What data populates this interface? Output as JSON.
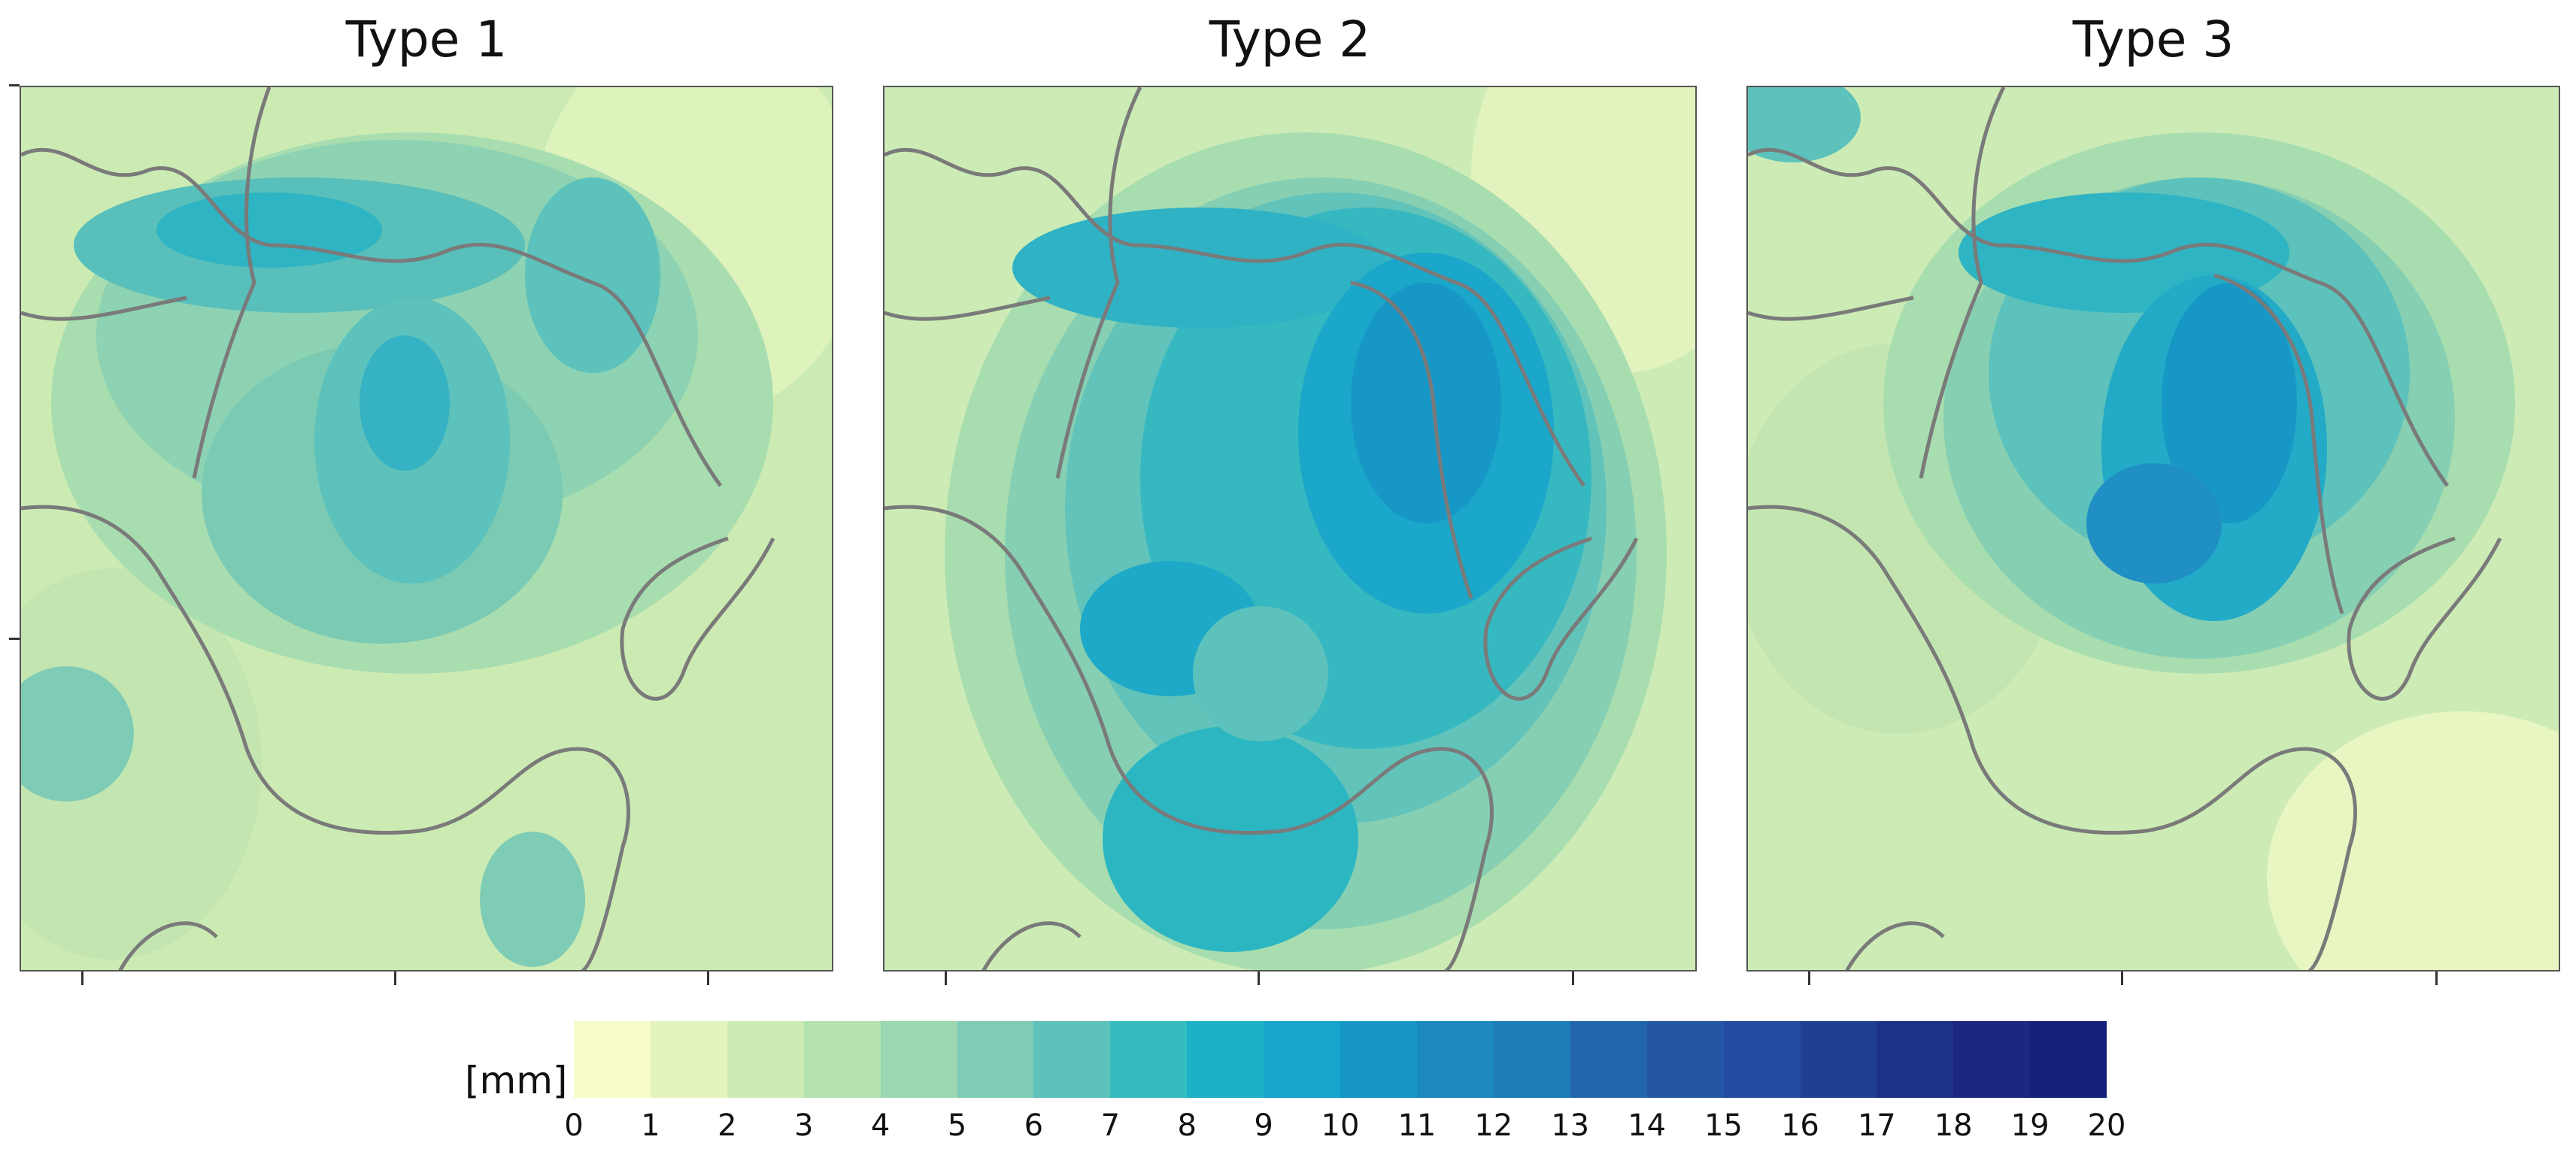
{
  "panels": [
    {
      "title": "Type 1"
    },
    {
      "title": "Type 2"
    },
    {
      "title": "Type 3"
    }
  ],
  "colorbar": {
    "unit_label": "[mm]",
    "ticks": [
      "0",
      "1",
      "2",
      "3",
      "4",
      "5",
      "6",
      "7",
      "8",
      "9",
      "10",
      "11",
      "12",
      "13",
      "14",
      "15",
      "16",
      "17",
      "18",
      "19",
      "20"
    ],
    "colors": [
      "#f7fcc9",
      "#e4f4bf",
      "#cdecb5",
      "#b5e3b0",
      "#9bd8b1",
      "#7fccb6",
      "#5cc2bb",
      "#35bcc0",
      "#1db1c6",
      "#16a5cb",
      "#1797c6",
      "#1b89c0",
      "#1f7bb7",
      "#2166ac",
      "#2357a6",
      "#244aa0",
      "#213e95",
      "#1d318a",
      "#1b2780",
      "#14217a"
    ]
  }
}
